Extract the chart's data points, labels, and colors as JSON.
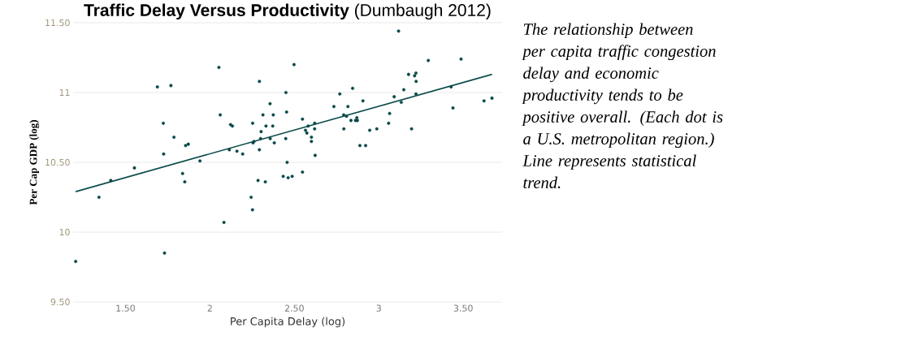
{
  "chart_data": {
    "type": "scatter",
    "title": "**Traffic Delay Versus Productivity** (Dumbaugh 2012)",
    "xlabel": "Per Capita Delay (log)",
    "ylabel": "Per Cap GDP (log)",
    "annotations": [
      "The relationship between per capita traffic congestion delay and economic productivity tends to be positive overall. (Each dot is a U.S. metropolitan region.) Line represents statistical trend."
    ],
    "xlim": [
      1.19,
      3.73
    ],
    "ylim": [
      9.5,
      11.5
    ],
    "xticks": [
      {
        "value": 1.5,
        "label": "1.50"
      },
      2,
      {
        "value": 2.5,
        "label": "2.50"
      },
      3,
      {
        "value": 3.5,
        "label": "3.50"
      }
    ],
    "yticks": [
      {
        "value": 9.5,
        "label": "9.50"
      },
      10,
      {
        "value": 10.5,
        "label": "10.50"
      },
      11,
      {
        "value": 11.5,
        "label": "11.50"
      }
    ],
    "grid": "y",
    "marker": "circle",
    "series": [
      {
        "type": "scatter",
        "color": "#0b4848",
        "x": [
          1.205,
          1.343,
          1.413,
          1.553,
          1.689,
          1.769,
          1.724,
          1.726,
          1.731,
          1.787,
          1.838,
          1.851,
          1.856,
          1.872,
          1.941,
          2.053,
          2.061,
          2.083,
          2.115,
          2.122,
          2.133,
          2.16,
          2.194,
          2.253,
          2.244,
          2.252,
          2.255,
          2.261,
          2.293,
          2.293,
          2.303,
          2.3,
          2.285,
          2.328,
          2.314,
          2.332,
          2.356,
          2.375,
          2.372,
          2.357,
          2.381,
          2.45,
          2.454,
          2.498,
          2.449,
          2.457,
          2.434,
          2.463,
          2.487,
          2.548,
          2.548,
          2.566,
          2.574,
          2.582,
          2.601,
          2.601,
          2.62,
          2.62,
          2.623,
          2.734,
          2.769,
          2.845,
          2.792,
          2.809,
          2.793,
          2.817,
          2.835,
          2.862,
          2.873,
          2.87,
          2.906,
          2.888,
          2.922,
          2.946,
          2.988,
          3.058,
          3.064,
          3.091,
          3.117,
          3.133,
          3.148,
          3.176,
          3.194,
          3.212,
          3.22,
          3.221,
          3.22,
          3.293,
          3.428,
          3.439,
          3.487,
          3.623,
          3.67
        ],
        "values": [
          9.79,
          10.25,
          10.37,
          10.46,
          11.04,
          11.05,
          10.78,
          10.56,
          9.85,
          10.68,
          10.42,
          10.36,
          10.62,
          10.63,
          10.51,
          11.18,
          10.84,
          10.07,
          10.59,
          10.77,
          10.76,
          10.58,
          10.56,
          10.78,
          10.25,
          10.16,
          10.64,
          10.65,
          11.08,
          10.59,
          10.72,
          10.67,
          10.37,
          10.36,
          10.84,
          10.76,
          10.92,
          10.84,
          10.76,
          10.67,
          10.64,
          11.0,
          10.86,
          11.2,
          10.67,
          10.5,
          10.4,
          10.39,
          10.4,
          10.43,
          10.81,
          10.73,
          10.71,
          10.76,
          10.68,
          10.65,
          10.78,
          10.74,
          10.55,
          10.9,
          10.99,
          11.03,
          10.84,
          10.83,
          10.74,
          10.9,
          10.8,
          10.8,
          10.8,
          10.82,
          10.94,
          10.62,
          10.62,
          10.73,
          10.74,
          10.78,
          10.85,
          10.97,
          11.44,
          10.93,
          11.02,
          11.13,
          10.74,
          11.12,
          11.14,
          11.08,
          10.99,
          11.23,
          11.04,
          10.89,
          11.24,
          10.94,
          10.96
        ]
      },
      {
        "type": "line",
        "marker": "none",
        "color": "#0d4b4b",
        "x": [
          1.205,
          3.67
        ],
        "values": [
          10.29,
          11.13
        ]
      }
    ]
  }
}
